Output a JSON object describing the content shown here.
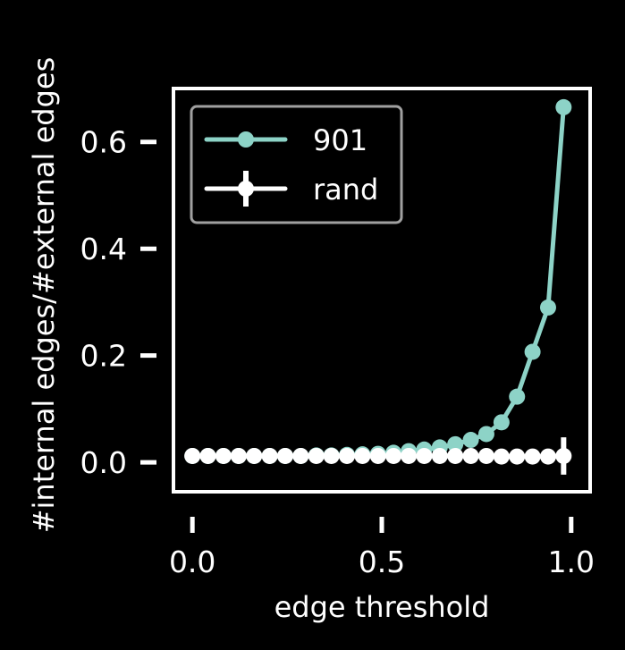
{
  "chart_data": {
    "type": "line",
    "title": "",
    "xlabel": "edge threshold",
    "ylabel": "#internal edges/#external edges",
    "xlim": [
      -0.05,
      1.05
    ],
    "ylim": [
      -0.055,
      0.7
    ],
    "xticks": [
      {
        "value": 0.0,
        "label": "0.0"
      },
      {
        "value": 0.5,
        "label": "0.5"
      },
      {
        "value": 1.0,
        "label": "1.0"
      }
    ],
    "yticks": [
      {
        "value": 0.0,
        "label": "0.0"
      },
      {
        "value": 0.2,
        "label": "0.2"
      },
      {
        "value": 0.4,
        "label": "0.4"
      },
      {
        "value": 0.6,
        "label": "0.6"
      }
    ],
    "grid": false,
    "legend_position": "top-left",
    "background": "#000000",
    "foreground": "#ffffff",
    "series": [
      {
        "name": "901",
        "color": "#8dd3c7",
        "marker": "circle",
        "x": [
          0.0,
          0.041,
          0.082,
          0.122,
          0.163,
          0.204,
          0.245,
          0.286,
          0.327,
          0.367,
          0.408,
          0.449,
          0.49,
          0.531,
          0.571,
          0.612,
          0.653,
          0.694,
          0.735,
          0.776,
          0.816,
          0.857,
          0.898,
          0.939,
          0.98
        ],
        "values": [
          0.012,
          0.012,
          0.012,
          0.012,
          0.012,
          0.012,
          0.012,
          0.012,
          0.013,
          0.013,
          0.014,
          0.015,
          0.016,
          0.018,
          0.021,
          0.024,
          0.028,
          0.034,
          0.042,
          0.053,
          0.075,
          0.123,
          0.207,
          0.29,
          0.665
        ]
      },
      {
        "name": "rand",
        "color": "#ffffff",
        "marker": "circle",
        "x": [
          0.0,
          0.041,
          0.082,
          0.122,
          0.163,
          0.204,
          0.245,
          0.286,
          0.327,
          0.367,
          0.408,
          0.449,
          0.49,
          0.531,
          0.571,
          0.612,
          0.653,
          0.694,
          0.735,
          0.776,
          0.816,
          0.857,
          0.898,
          0.939,
          0.98
        ],
        "values": [
          0.012,
          0.012,
          0.012,
          0.012,
          0.012,
          0.012,
          0.012,
          0.012,
          0.012,
          0.012,
          0.012,
          0.012,
          0.012,
          0.012,
          0.012,
          0.012,
          0.012,
          0.012,
          0.012,
          0.012,
          0.011,
          0.011,
          0.011,
          0.011,
          0.012
        ],
        "error": [
          0,
          0,
          0,
          0,
          0,
          0,
          0,
          0,
          0,
          0,
          0,
          0,
          0,
          0,
          0,
          0,
          0,
          0,
          0,
          0,
          0,
          0,
          0,
          0,
          0.035
        ]
      }
    ]
  }
}
